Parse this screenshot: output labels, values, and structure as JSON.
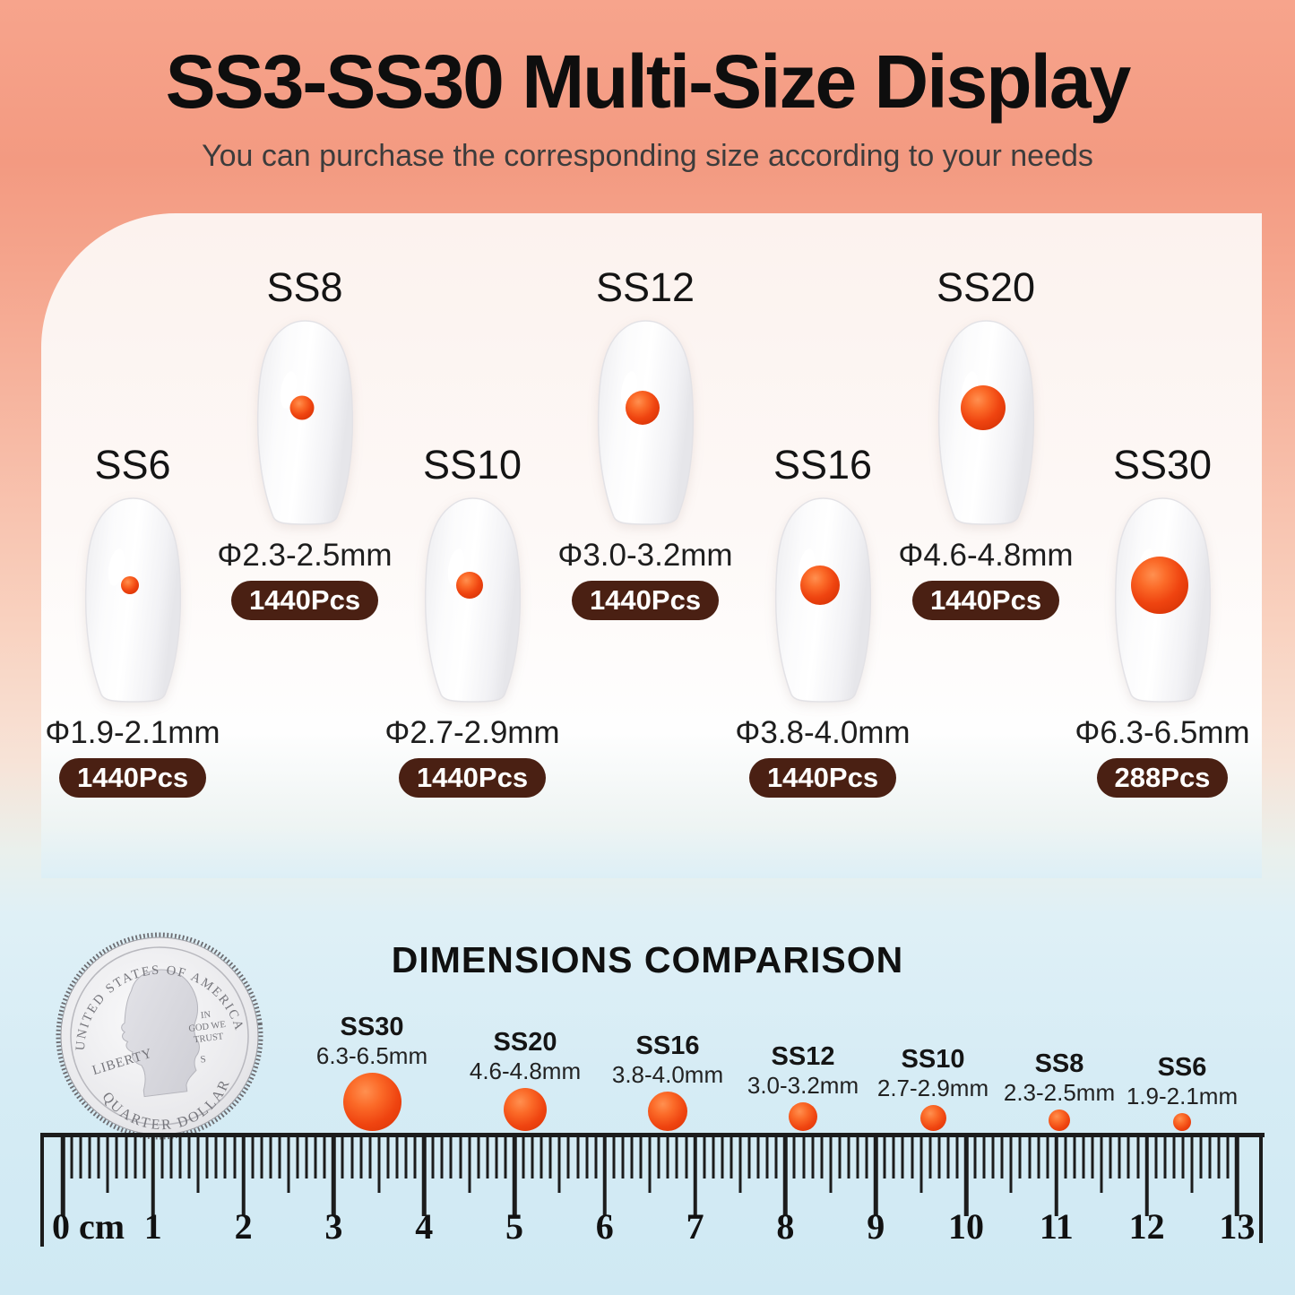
{
  "header": {
    "title": "SS3-SS30 Multi-Size Display",
    "subtitle": "You can purchase the corresponding size according to your needs"
  },
  "sizes": [
    {
      "name": "SS8",
      "diameter": "Φ2.3-2.5mm",
      "count": "1440Pcs"
    },
    {
      "name": "SS12",
      "diameter": "Φ3.0-3.2mm",
      "count": "1440Pcs"
    },
    {
      "name": "SS20",
      "diameter": "Φ4.6-4.8mm",
      "count": "1440Pcs"
    },
    {
      "name": "SS6",
      "diameter": "Φ1.9-2.1mm",
      "count": "1440Pcs"
    },
    {
      "name": "SS10",
      "diameter": "Φ2.7-2.9mm",
      "count": "1440Pcs"
    },
    {
      "name": "SS16",
      "diameter": "Φ3.8-4.0mm",
      "count": "1440Pcs"
    },
    {
      "name": "SS30",
      "diameter": "Φ6.3-6.5mm",
      "count": "288Pcs"
    }
  ],
  "comparison": {
    "title": "DIMENSIONS COMPARISON",
    "coin": {
      "top_text": "UNITED STATES OF AMERICA",
      "bottom_text": "QUARTER DOLLAR",
      "left_text": "LIBERTY",
      "right_text_lines": [
        "IN",
        "GOD WE",
        "TRUST"
      ],
      "mint_mark": "S"
    },
    "dots": [
      {
        "name": "SS30",
        "size": "6.3-6.5mm"
      },
      {
        "name": "SS20",
        "size": "4.6-4.8mm"
      },
      {
        "name": "SS16",
        "size": "3.8-4.0mm"
      },
      {
        "name": "SS12",
        "size": "3.0-3.2mm"
      },
      {
        "name": "SS10",
        "size": "2.7-2.9mm"
      },
      {
        "name": "SS8",
        "size": "2.3-2.5mm"
      },
      {
        "name": "SS6",
        "size": "1.9-2.1mm"
      }
    ],
    "ruler": {
      "zero_label": "0 cm",
      "numbers": [
        "1",
        "2",
        "3",
        "4",
        "5",
        "6",
        "7",
        "8",
        "9",
        "10",
        "11",
        "12",
        "13"
      ]
    }
  },
  "colors": {
    "badge_bg": "#4a2013",
    "gem_orange": "#ef4410",
    "bg_top_peach": "#f7a48c",
    "bg_bottom_blue": "#cfe9f3",
    "panel": "#fdf8f6"
  }
}
